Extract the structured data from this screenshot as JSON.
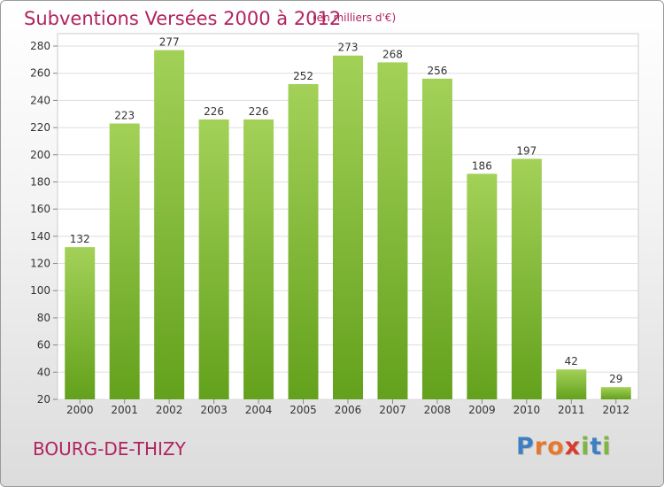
{
  "header": {
    "title": "Subventions Versées 2000 à 2012",
    "unit_note": "(en milliers d'€)"
  },
  "commune": "BOURG-DE-THIZY",
  "brand": {
    "text": "Proxiti",
    "letters": [
      {
        "ch": "P",
        "color": "#3f7fc1"
      },
      {
        "ch": "r",
        "color": "#e8772e"
      },
      {
        "ch": "o",
        "color": "#e8772e"
      },
      {
        "ch": "x",
        "color": "#d83a2c"
      },
      {
        "ch": "i",
        "color": "#7cb740"
      },
      {
        "ch": "t",
        "color": "#3f7fc1"
      },
      {
        "ch": "i",
        "color": "#7cb740"
      }
    ]
  },
  "colors": {
    "accent": "#b0245f",
    "bar_top": "#a3d158",
    "bar_bottom": "#63a11c",
    "grid": "#dddddd"
  },
  "chart_data": {
    "type": "bar",
    "categories": [
      "2000",
      "2001",
      "2002",
      "2003",
      "2004",
      "2005",
      "2006",
      "2007",
      "2008",
      "2009",
      "2010",
      "2011",
      "2012"
    ],
    "values": [
      132,
      223,
      277,
      226,
      226,
      252,
      273,
      268,
      256,
      186,
      197,
      42,
      29
    ],
    "title": "Subventions Versées 2000 à 2012",
    "subtitle": "(en milliers d'€)",
    "xlabel": "",
    "ylabel": "",
    "ylim": [
      20,
      280
    ],
    "yticks": [
      20,
      40,
      60,
      80,
      100,
      120,
      140,
      160,
      180,
      200,
      220,
      240,
      260,
      280
    ],
    "grid": true,
    "data_labels": true
  }
}
